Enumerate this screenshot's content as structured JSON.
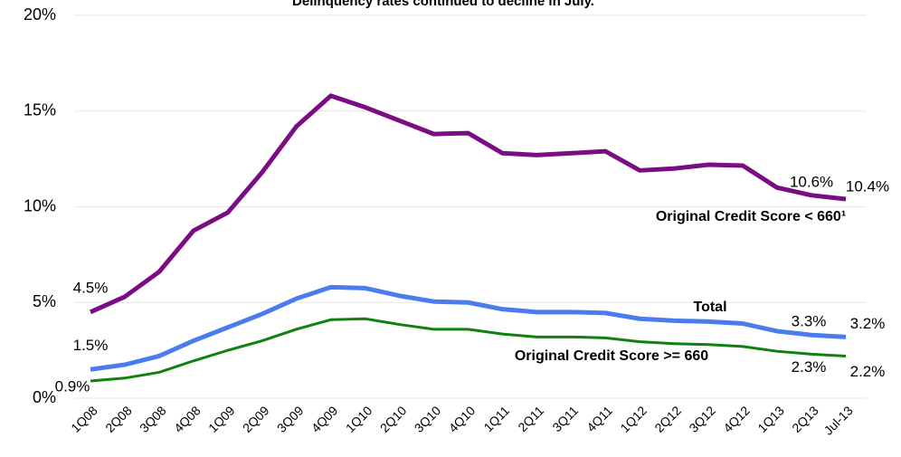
{
  "chart_data": {
    "type": "line",
    "title": "Delinquency rates continued to decline in July.",
    "categories": [
      "1Q08",
      "2Q08",
      "3Q08",
      "4Q08",
      "1Q09",
      "2Q09",
      "3Q09",
      "4Q09",
      "1Q10",
      "2Q10",
      "3Q10",
      "4Q10",
      "1Q11",
      "2Q11",
      "3Q11",
      "4Q11",
      "1Q12",
      "2Q12",
      "3Q12",
      "4Q12",
      "1Q13",
      "2Q13",
      "Jul-13"
    ],
    "ylim": [
      0,
      20
    ],
    "yticks": [
      {
        "value": 0,
        "label": "0%"
      },
      {
        "value": 5,
        "label": "5%"
      },
      {
        "value": 10,
        "label": "10%"
      },
      {
        "value": 15,
        "label": "15%"
      },
      {
        "value": 20,
        "label": "20%"
      }
    ],
    "grid": true,
    "series": [
      {
        "name": "Original Credit Score < 660¹",
        "color": "#7b0d84",
        "values": [
          4.5,
          5.3,
          6.6,
          8.75,
          9.7,
          11.8,
          14.2,
          15.8,
          15.2,
          14.5,
          13.8,
          13.85,
          12.8,
          12.7,
          12.8,
          12.9,
          11.9,
          12.0,
          12.2,
          12.15,
          11.0,
          10.6,
          10.4
        ],
        "value_labels": [
          "4.5%",
          null,
          null,
          null,
          null,
          null,
          null,
          null,
          null,
          null,
          null,
          null,
          null,
          null,
          null,
          null,
          null,
          null,
          null,
          null,
          null,
          "10.6%",
          "10.4%"
        ]
      },
      {
        "name": "Total",
        "color": "#4a7cf0",
        "values": [
          1.5,
          1.75,
          2.2,
          3.0,
          3.7,
          4.4,
          5.2,
          5.8,
          5.75,
          5.35,
          5.05,
          5.0,
          4.65,
          4.5,
          4.5,
          4.45,
          4.15,
          4.05,
          4.0,
          3.9,
          3.5,
          3.3,
          3.2
        ],
        "value_labels": [
          "1.5%",
          null,
          null,
          null,
          null,
          null,
          null,
          null,
          null,
          null,
          null,
          null,
          null,
          null,
          null,
          null,
          null,
          null,
          null,
          null,
          null,
          "3.3%",
          "3.2%"
        ]
      },
      {
        "name": "Original Credit Score >= 660",
        "color": "#108010",
        "values": [
          0.9,
          1.05,
          1.35,
          1.95,
          2.5,
          3.0,
          3.6,
          4.1,
          4.15,
          3.85,
          3.6,
          3.6,
          3.35,
          3.2,
          3.2,
          3.15,
          2.95,
          2.85,
          2.8,
          2.7,
          2.45,
          2.3,
          2.2
        ],
        "value_labels": [
          "0.9%",
          null,
          null,
          null,
          null,
          null,
          null,
          null,
          null,
          null,
          null,
          null,
          null,
          null,
          null,
          null,
          null,
          null,
          null,
          null,
          null,
          "2.3%",
          "2.2%"
        ]
      }
    ]
  }
}
